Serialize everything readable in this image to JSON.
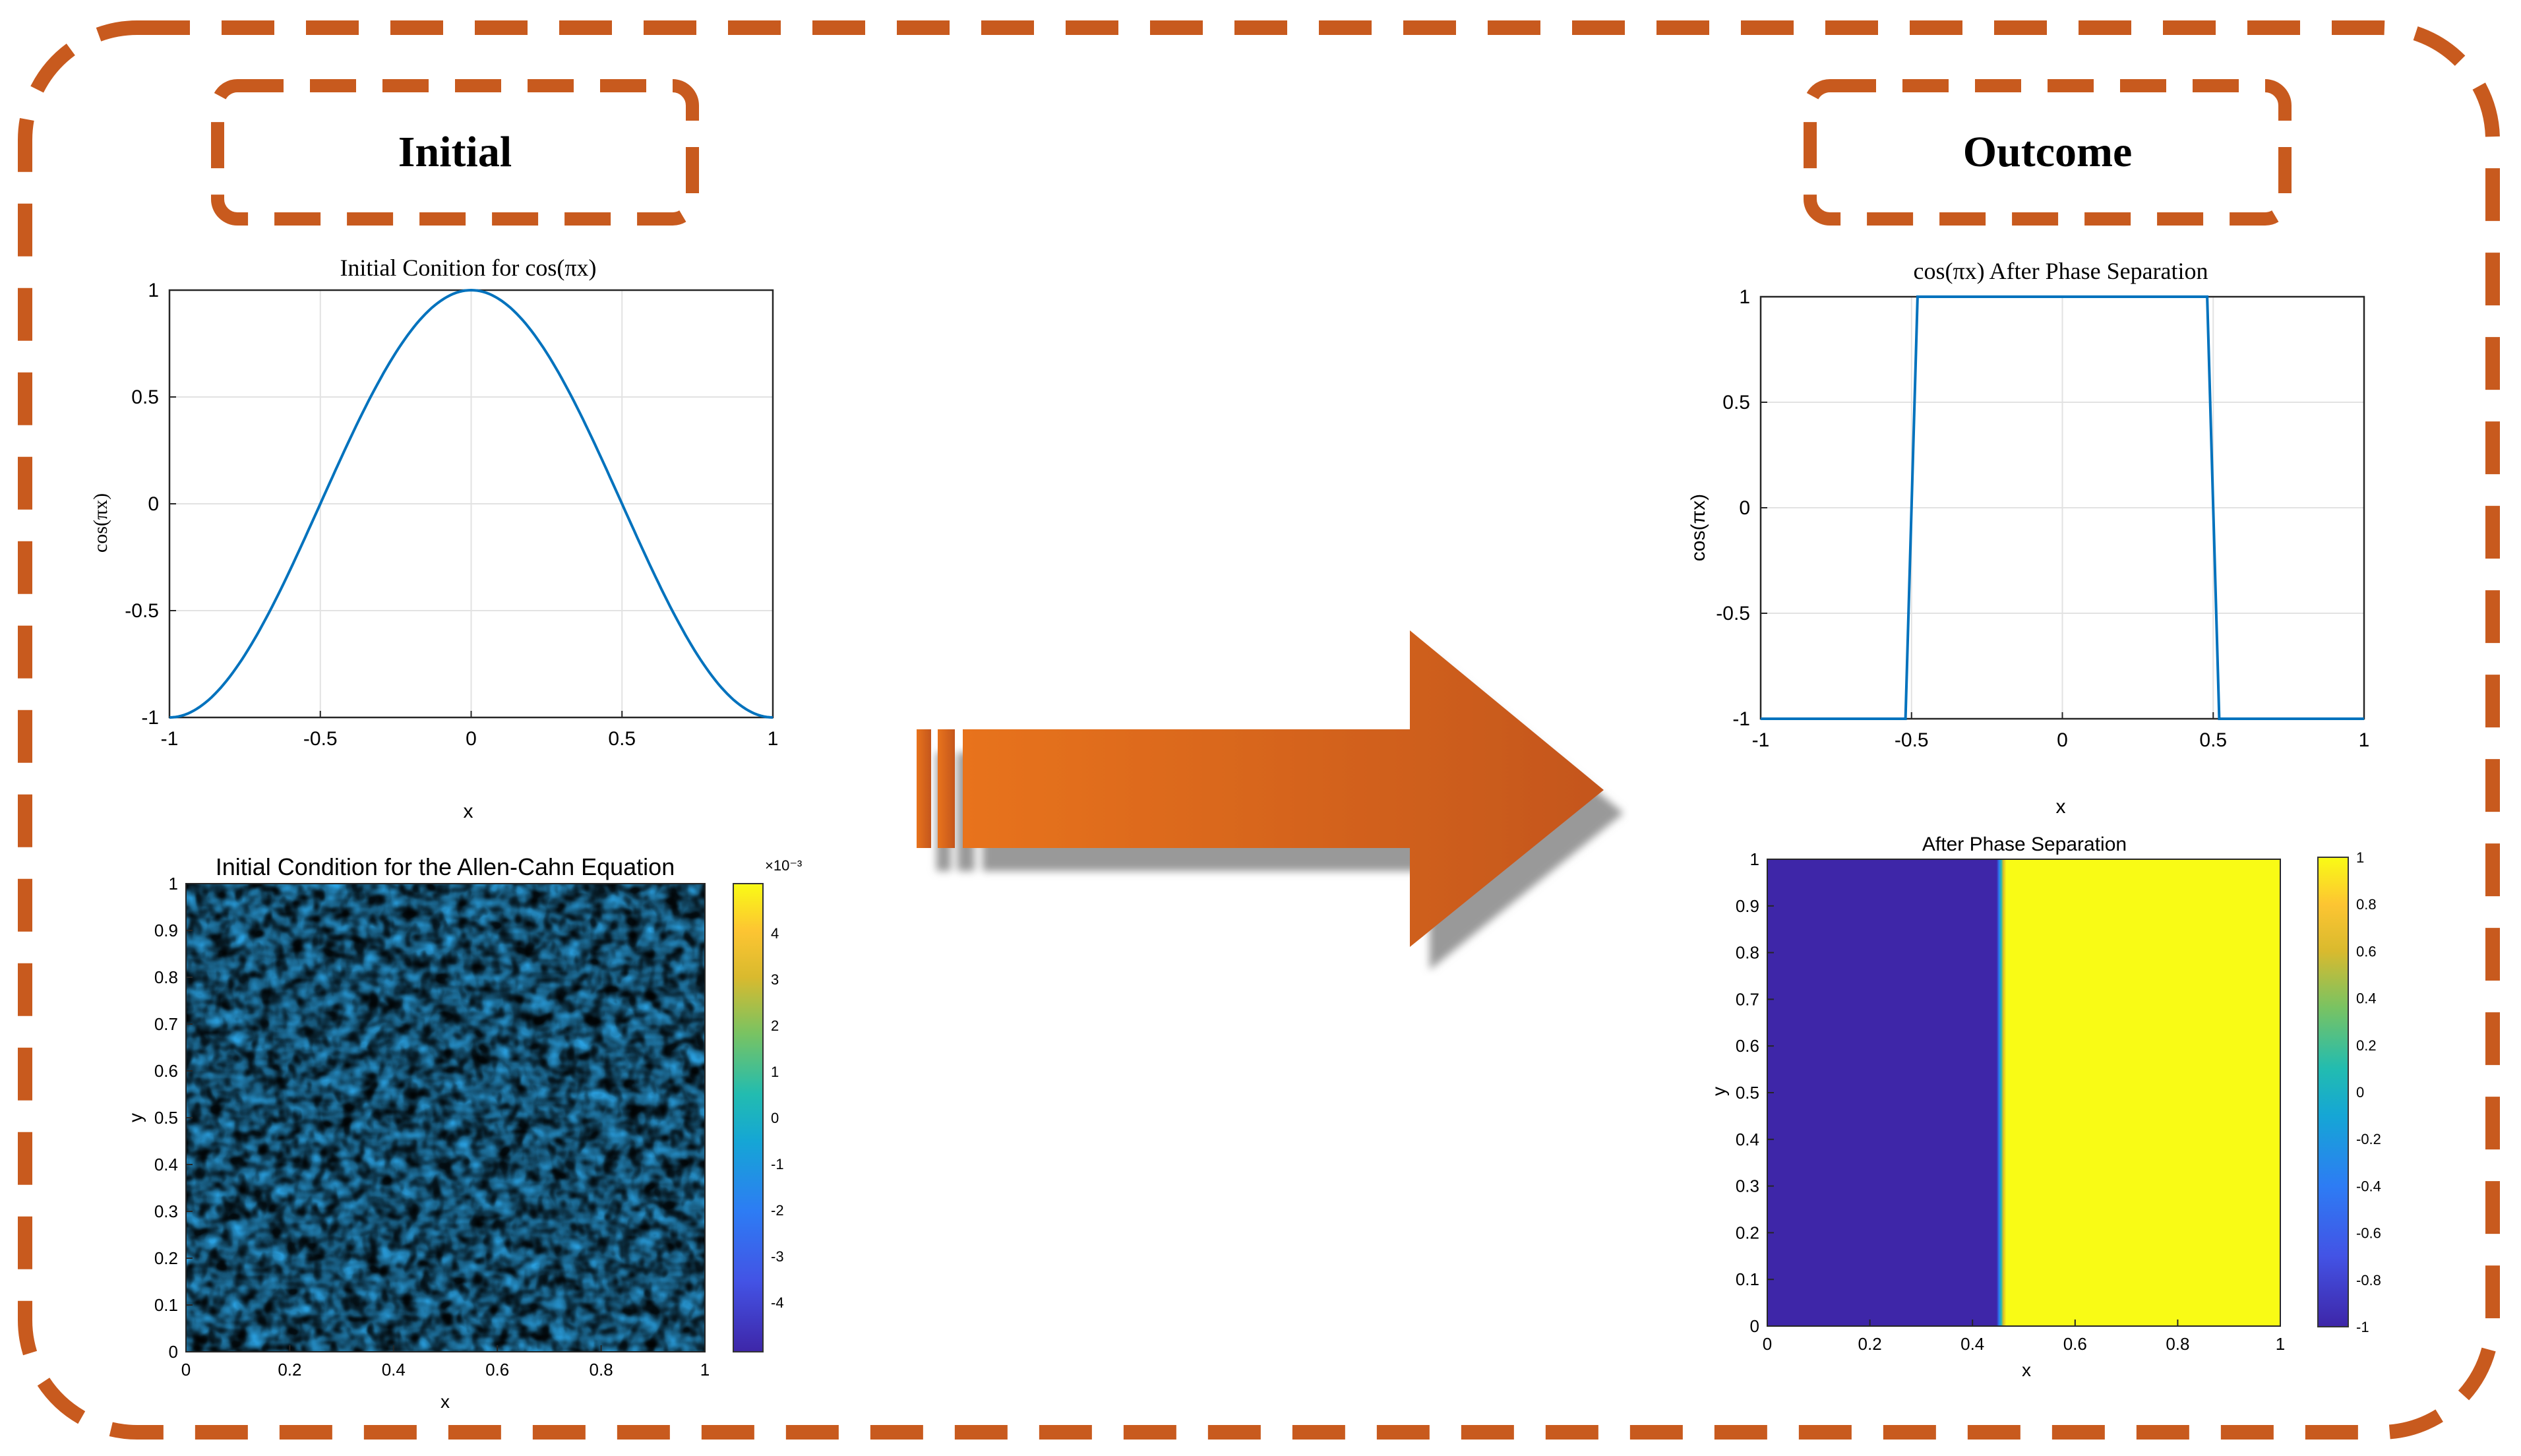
{
  "colors": {
    "frame": "#c85a1e",
    "line": "#0072bd",
    "arrow_dark": "#c4561a",
    "arrow_light": "#e8731e",
    "field_low": "#3e26a8",
    "field_high": "#f9fb15"
  },
  "labels": {
    "initial": "Initial",
    "outcome": "Outcome"
  },
  "arrow": {
    "icon": "right-arrow-icon"
  },
  "panels": {
    "initial_line": {
      "title": "Initial Conition for cos(πx)",
      "xlabel": "x",
      "ylabel": "cos(πx)",
      "xticks": [
        "-1",
        "-0.5",
        "0",
        "0.5",
        "1"
      ],
      "yticks": [
        "1",
        "0.5",
        "0",
        "-0.5",
        "-1"
      ]
    },
    "initial_map": {
      "title": "Initial Condition for the Allen-Cahn Equation",
      "xlabel": "x",
      "ylabel": "y",
      "xticks": [
        "0",
        "0.2",
        "0.4",
        "0.6",
        "0.8",
        "1"
      ],
      "yticks": [
        "1",
        "0.9",
        "0.8",
        "0.7",
        "0.6",
        "0.5",
        "0.4",
        "0.3",
        "0.2",
        "0.1",
        "0"
      ],
      "cbar_ticks": [
        "4",
        "3",
        "2",
        "1",
        "0",
        "-1",
        "-2",
        "-3",
        "-4"
      ],
      "cbar_exp": "×10⁻³"
    },
    "outcome_line": {
      "title": "cos(πx) After Phase Separation",
      "xlabel": "x",
      "ylabel": "cos(πx)",
      "xticks": [
        "-1",
        "-0.5",
        "0",
        "0.5",
        "1"
      ],
      "yticks": [
        "1",
        "0.5",
        "0",
        "-0.5",
        "-1"
      ]
    },
    "outcome_map": {
      "title": "After Phase Separation",
      "xlabel": "x",
      "ylabel": "y",
      "xticks": [
        "0",
        "0.2",
        "0.4",
        "0.6",
        "0.8",
        "1"
      ],
      "yticks": [
        "1",
        "0.9",
        "0.8",
        "0.7",
        "0.6",
        "0.5",
        "0.4",
        "0.3",
        "0.2",
        "0.1",
        "0"
      ],
      "cbar_ticks": [
        "1",
        "0.8",
        "0.6",
        "0.4",
        "0.2",
        "0",
        "-0.2",
        "-0.4",
        "-0.6",
        "-0.8",
        "-1"
      ]
    }
  },
  "chart_data": [
    {
      "type": "line",
      "series": [
        {
          "function": "cos(pi*x)",
          "x_range": [
            -1,
            1
          ]
        }
      ],
      "xlim": [
        -1,
        1
      ],
      "ylim": [
        -1,
        1
      ],
      "grid": true
    },
    {
      "type": "heatmap",
      "data": "random noise",
      "xlim": [
        0,
        1
      ],
      "ylim": [
        0,
        1
      ],
      "clim": [
        -0.005,
        0.005
      ]
    },
    {
      "type": "line",
      "series": [
        {
          "x": [
            -1,
            -0.52,
            -0.48,
            0.48,
            0.52,
            1
          ],
          "y": [
            -1,
            -1,
            1,
            1,
            -1,
            -1
          ]
        }
      ],
      "xlim": [
        -1,
        1
      ],
      "ylim": [
        -1,
        1
      ],
      "grid": true
    },
    {
      "type": "heatmap",
      "data": "phase separated",
      "interface_x": 0.45,
      "xlim": [
        0,
        1
      ],
      "ylim": [
        0,
        1
      ],
      "clim": [
        -1,
        1
      ]
    }
  ]
}
